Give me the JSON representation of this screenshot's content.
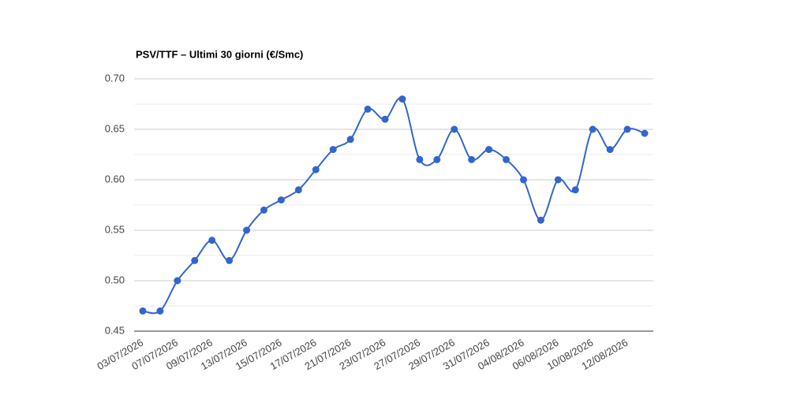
{
  "chart_data": {
    "type": "line",
    "title": "PSV/TTF – Ultimi 30 giorni (€/Smc)",
    "categories": [
      "03/07/2026",
      null,
      "07/07/2026",
      null,
      "09/07/2026",
      null,
      "13/07/2026",
      null,
      "15/07/2026",
      null,
      "17/07/2026",
      null,
      "21/07/2026",
      null,
      "23/07/2026",
      null,
      "27/07/2026",
      null,
      "29/07/2026",
      null,
      "31/07/2026",
      null,
      "04/08/2026",
      null,
      "06/08/2026",
      null,
      "10/08/2026",
      null,
      "12/08/2026",
      null
    ],
    "series": [
      {
        "color": "#3366cc",
        "values": [
          0.47,
          0.47,
          0.5,
          0.52,
          0.54,
          0.52,
          0.55,
          0.57,
          0.58,
          0.59,
          0.61,
          0.63,
          0.64,
          0.67,
          0.66,
          0.68,
          0.62,
          0.62,
          0.65,
          0.62,
          0.63,
          0.62,
          0.6,
          0.56,
          0.6,
          0.59,
          0.65,
          0.63,
          0.65,
          0.646
        ]
      }
    ],
    "ylim": [
      0.45,
      0.7
    ],
    "yticks": [
      0.45,
      {
        "value": 0.5,
        "label": "0.50"
      },
      0.55,
      {
        "value": 0.6,
        "label": "0.60"
      },
      0.65,
      {
        "value": 0.7,
        "label": "0.70"
      }
    ],
    "grid": true,
    "minor_grid": true,
    "smooth": true
  }
}
